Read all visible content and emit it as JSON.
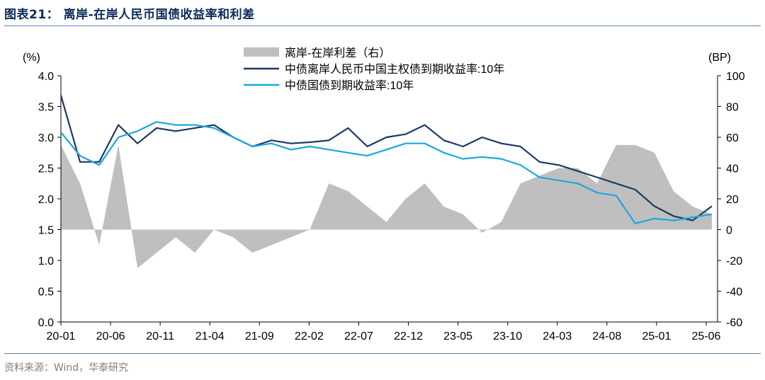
{
  "header": {
    "title": "图表21：  离岸-在岸人民币国债收益率和利差"
  },
  "footer": {
    "source": "资料来源：Wind，华泰研究"
  },
  "colors": {
    "spread": "#bfbfbf",
    "offshore": "#1f3864",
    "onshore": "#1aa7e0",
    "axis": "#000000"
  },
  "chart_data": {
    "type": "line",
    "left_unit": "(%)",
    "right_unit": "(BP)",
    "ylim_left": [
      0.0,
      4.0
    ],
    "ylim_right": [
      -60,
      100
    ],
    "y_ticks_left": [
      "4.0",
      "3.5",
      "3.0",
      "2.5",
      "2.0",
      "1.5",
      "1.0",
      "0.5",
      "0.0"
    ],
    "y_ticks_right": [
      "100",
      "80",
      "60",
      "40",
      "20",
      "0",
      "-20",
      "-40",
      "-60"
    ],
    "x_ticks": [
      "20-01",
      "20-06",
      "20-11",
      "21-04",
      "21-09",
      "22-02",
      "22-07",
      "22-12",
      "23-05",
      "23-10",
      "24-03",
      "24-08",
      "25-01",
      "25-06"
    ],
    "x": [
      "20-01",
      "20-03",
      "20-05",
      "20-07",
      "20-09",
      "20-11",
      "21-01",
      "21-03",
      "21-05",
      "21-07",
      "21-09",
      "21-11",
      "22-01",
      "22-03",
      "22-05",
      "22-07",
      "22-09",
      "22-11",
      "23-01",
      "23-03",
      "23-05",
      "23-07",
      "23-09",
      "23-11",
      "24-01",
      "24-03",
      "24-05",
      "24-07",
      "24-09",
      "24-11",
      "25-01",
      "25-03",
      "25-05",
      "25-07",
      "25-08"
    ],
    "series": [
      {
        "name": "离岸-在岸利差（右）",
        "type": "area",
        "axis": "right",
        "values": [
          55,
          30,
          -10,
          55,
          -25,
          -15,
          -5,
          -15,
          0,
          -5,
          -15,
          -10,
          -5,
          0,
          30,
          25,
          15,
          5,
          20,
          30,
          15,
          10,
          -2,
          5,
          30,
          35,
          40,
          40,
          30,
          55,
          55,
          50,
          25,
          15,
          10
        ]
      },
      {
        "name": "中债离岸人民币中国主权债到期收益率:10年",
        "type": "line",
        "axis": "left",
        "values": [
          3.68,
          2.6,
          2.6,
          3.2,
          2.9,
          3.15,
          3.1,
          3.15,
          3.2,
          3.0,
          2.85,
          2.95,
          2.9,
          2.92,
          2.95,
          3.15,
          2.85,
          3.0,
          3.05,
          3.2,
          2.95,
          2.85,
          3.0,
          2.9,
          2.85,
          2.6,
          2.55,
          2.45,
          2.35,
          2.25,
          2.15,
          1.88,
          1.72,
          1.65,
          1.88
        ]
      },
      {
        "name": "中债国债到期收益率:10年",
        "type": "line",
        "axis": "left",
        "values": [
          3.08,
          2.7,
          2.55,
          3.0,
          3.1,
          3.25,
          3.2,
          3.2,
          3.15,
          3.0,
          2.85,
          2.9,
          2.8,
          2.85,
          2.8,
          2.75,
          2.7,
          2.8,
          2.9,
          2.9,
          2.75,
          2.65,
          2.68,
          2.65,
          2.55,
          2.35,
          2.3,
          2.25,
          2.1,
          2.05,
          1.6,
          1.68,
          1.65,
          1.7,
          1.75
        ]
      }
    ],
    "legend_position": "top-center",
    "grid": false
  }
}
